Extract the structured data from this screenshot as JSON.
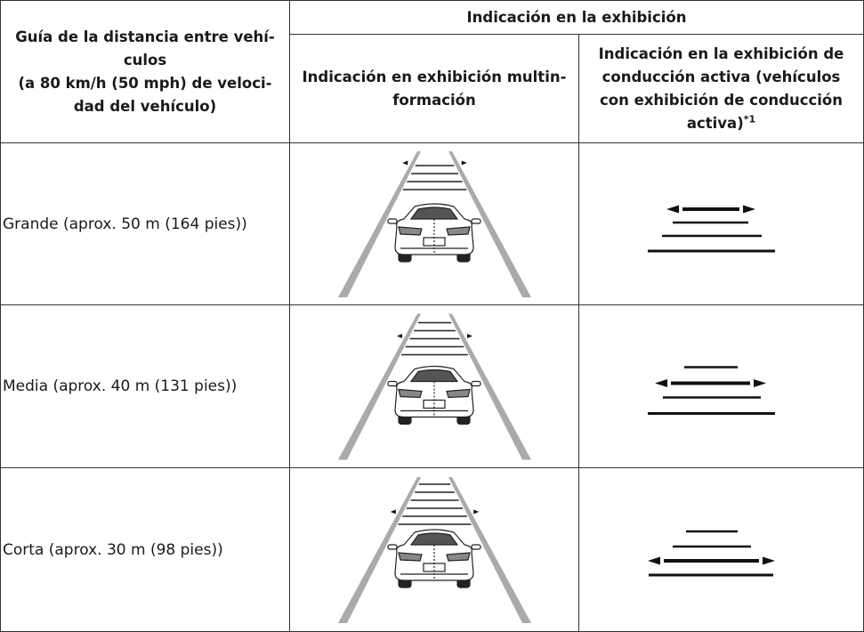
{
  "table": {
    "header": {
      "column1": [
        "Guía de la distancia entre vehí-",
        "culos",
        "(a 80 km/h (50 mph) de veloci-",
        "dad del vehículo)"
      ],
      "group": "Indicación en la exhibición",
      "column2": [
        "Indicación en exhibición multin-",
        "formación"
      ],
      "column3": {
        "lines": [
          "Indicación en la exhibición de",
          "conducción activa (vehículos",
          "con exhibición de conducción",
          "activa)"
        ],
        "footnote_ref": "*1"
      }
    },
    "rows": [
      "Grande (aprox. 50 m (164 pies))",
      "Media (aprox. 40 m (131 pies))",
      "Corta (aprox. 30 m (98 pies))"
    ]
  }
}
